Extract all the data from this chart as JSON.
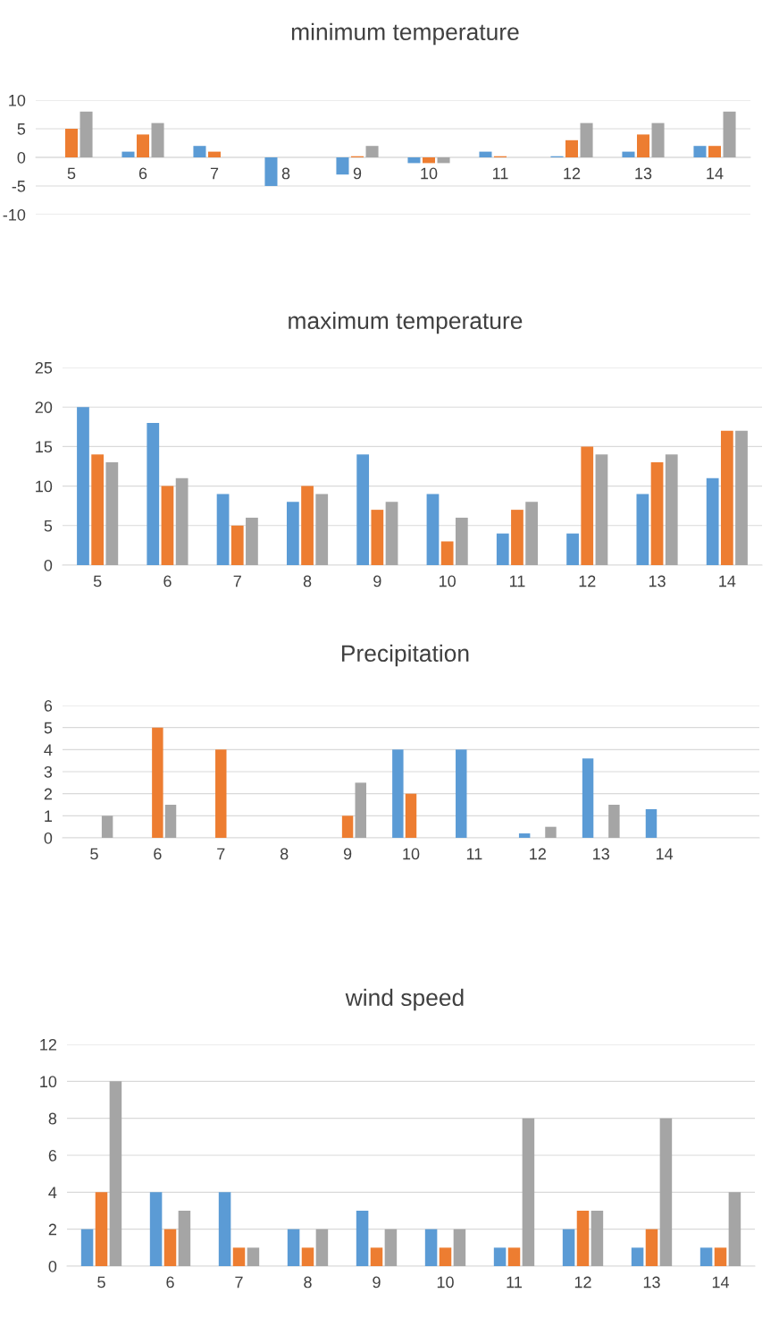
{
  "chart_data": [
    {
      "type": "bar",
      "title": "minimum temperature",
      "categories": [
        "5",
        "6",
        "7",
        "8",
        "9",
        "10",
        "11",
        "12",
        "13",
        "14"
      ],
      "ylim": [
        -10,
        10
      ],
      "yticks": [
        -10,
        -5,
        0,
        5,
        10
      ],
      "grid": "y",
      "legend": false,
      "series": [
        {
          "color": "#5b9bd5",
          "values": [
            0,
            1,
            2,
            -5,
            -3,
            -1,
            1,
            0.2,
            1,
            2
          ]
        },
        {
          "color": "#ed7d31",
          "values": [
            5,
            4,
            1,
            0,
            0.2,
            -1,
            0.2,
            3,
            4,
            2
          ]
        },
        {
          "color": "#a5a5a5",
          "values": [
            8,
            6,
            0,
            0,
            2,
            -1,
            0,
            6,
            6,
            8
          ]
        }
      ]
    },
    {
      "type": "bar",
      "title": "maximum temperature",
      "categories": [
        "5",
        "6",
        "7",
        "8",
        "9",
        "10",
        "11",
        "12",
        "13",
        "14"
      ],
      "ylim": [
        0,
        25
      ],
      "yticks": [
        0,
        5,
        10,
        15,
        20,
        25
      ],
      "grid": "y",
      "legend": false,
      "series": [
        {
          "color": "#5b9bd5",
          "values": [
            20,
            18,
            9,
            8,
            14,
            9,
            4,
            4,
            9,
            11
          ]
        },
        {
          "color": "#ed7d31",
          "values": [
            14,
            10,
            5,
            10,
            7,
            3,
            7,
            15,
            13,
            17
          ]
        },
        {
          "color": "#a5a5a5",
          "values": [
            13,
            11,
            6,
            9,
            8,
            6,
            8,
            14,
            14,
            17
          ]
        }
      ]
    },
    {
      "type": "bar",
      "title": "Precipitation",
      "categories": [
        "5",
        "6",
        "7",
        "8",
        "9",
        "10",
        "11",
        "12",
        "13",
        "14",
        null
      ],
      "ylim": [
        0,
        6
      ],
      "yticks": [
        0,
        1,
        2,
        3,
        4,
        5,
        6
      ],
      "grid": "y",
      "legend": false,
      "series": [
        {
          "color": "#5b9bd5",
          "values": [
            0,
            0,
            0,
            0,
            0,
            4,
            4,
            0.2,
            3.6,
            1.3,
            0
          ]
        },
        {
          "color": "#ed7d31",
          "values": [
            0,
            5,
            4,
            0,
            1,
            2,
            0,
            0,
            0,
            0,
            0
          ]
        },
        {
          "color": "#a5a5a5",
          "values": [
            1,
            1.5,
            0,
            0,
            2.5,
            0,
            0,
            0.5,
            1.5,
            0,
            0
          ]
        }
      ]
    },
    {
      "type": "bar",
      "title": "wind speed",
      "categories": [
        "5",
        "6",
        "7",
        "8",
        "9",
        "10",
        "11",
        "12",
        "13",
        "14"
      ],
      "ylim": [
        0,
        12
      ],
      "yticks": [
        0,
        2,
        4,
        6,
        8,
        10,
        12
      ],
      "grid": "y",
      "legend": false,
      "series": [
        {
          "color": "#5b9bd5",
          "values": [
            2,
            4,
            4,
            2,
            3,
            2,
            1,
            2,
            1,
            1
          ]
        },
        {
          "color": "#ed7d31",
          "values": [
            4,
            2,
            1,
            1,
            1,
            1,
            1,
            3,
            2,
            1
          ]
        },
        {
          "color": "#a5a5a5",
          "values": [
            10,
            3,
            1,
            2,
            2,
            2,
            8,
            3,
            8,
            4
          ]
        }
      ]
    }
  ]
}
